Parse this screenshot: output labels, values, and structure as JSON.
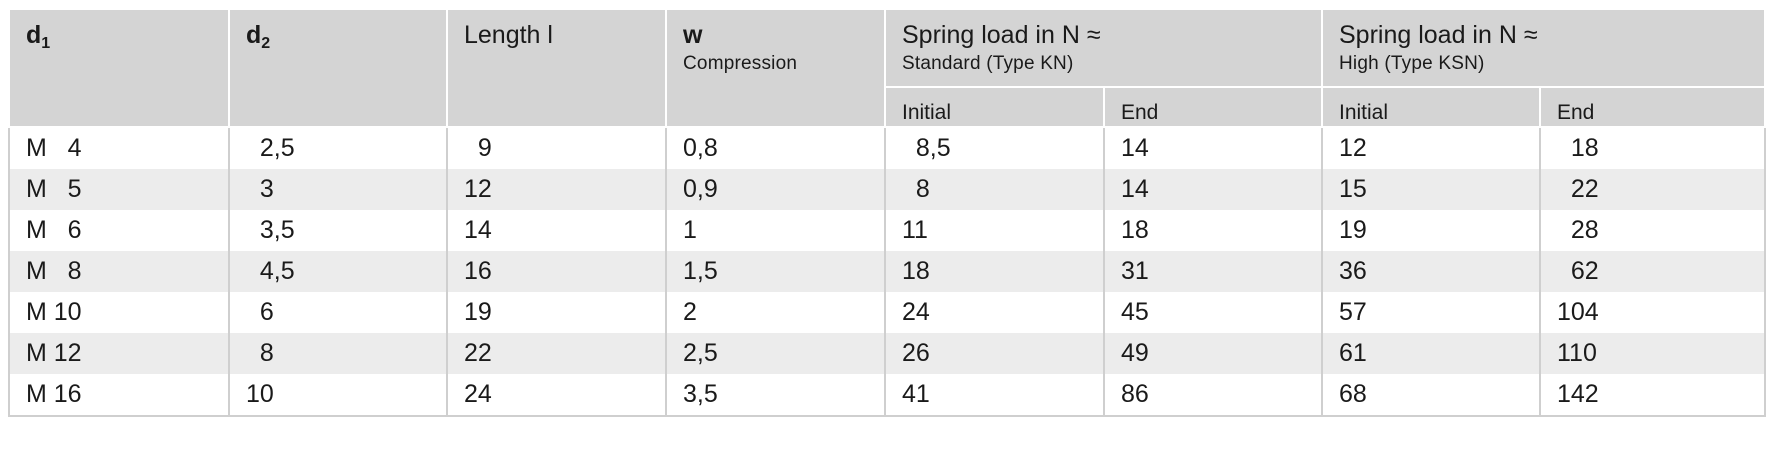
{
  "header": {
    "d1": {
      "main": "d",
      "sub": "1"
    },
    "d2": {
      "main": "d",
      "sub": "2"
    },
    "length": "Length l",
    "w": {
      "main": "w",
      "line2": "Compression"
    },
    "standard": {
      "main": "Spring load in N ≈",
      "line2": "Standard (Type KN)"
    },
    "high": {
      "main": "Spring load in N ≈",
      "line2": "High (Type KSN)"
    },
    "sub": {
      "initial_std": "Initial",
      "end_std": "End",
      "initial_high": "Initial",
      "end_high": "End"
    }
  },
  "rows": [
    {
      "d1": "M   4",
      "d2": "  2,5",
      "length": "  9",
      "w": "0,8",
      "initial_std": "  8,5",
      "end_std": "14",
      "initial_high": "12",
      "end_high": "  18"
    },
    {
      "d1": "M   5",
      "d2": "  3",
      "length": "12",
      "w": "0,9",
      "initial_std": "  8",
      "end_std": "14",
      "initial_high": "15",
      "end_high": "  22"
    },
    {
      "d1": "M   6",
      "d2": "  3,5",
      "length": "14",
      "w": "1",
      "initial_std": "11",
      "end_std": "18",
      "initial_high": "19",
      "end_high": "  28"
    },
    {
      "d1": "M   8",
      "d2": "  4,5",
      "length": "16",
      "w": "1,5",
      "initial_std": "18",
      "end_std": "31",
      "initial_high": "36",
      "end_high": "  62"
    },
    {
      "d1": "M 10",
      "d2": "  6",
      "length": "19",
      "w": "2",
      "initial_std": "24",
      "end_std": "45",
      "initial_high": "57",
      "end_high": "104"
    },
    {
      "d1": "M 12",
      "d2": "  8",
      "length": "22",
      "w": "2,5",
      "initial_std": "26",
      "end_std": "49",
      "initial_high": "61",
      "end_high": "110"
    },
    {
      "d1": "M 16",
      "d2": "10",
      "length": "24",
      "w": "3,5",
      "initial_std": "41",
      "end_std": "86",
      "initial_high": "68",
      "end_high": "142"
    }
  ]
}
